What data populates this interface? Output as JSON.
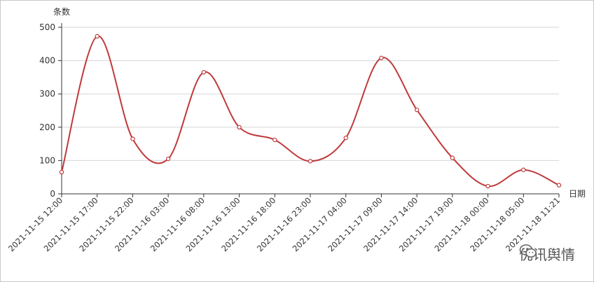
{
  "chart_data": {
    "type": "line",
    "ylabel": "条数",
    "xlabel": "日期",
    "ylim": [
      0,
      500
    ],
    "yticks": [
      0,
      100,
      200,
      300,
      400,
      500
    ],
    "grid": true,
    "smooth": true,
    "series_color": "#c0393b",
    "categories": [
      "2021-11-15 12:00",
      "2021-11-15 17:00",
      "2021-11-15 22:00",
      "2021-11-16 03:00",
      "2021-11-16 08:00",
      "2021-11-16 13:00",
      "2021-11-16 18:00",
      "2021-11-16 23:00",
      "2021-11-17 04:00",
      "2021-11-17 09:00",
      "2021-11-17 14:00",
      "2021-11-17 19:00",
      "2021-11-18 00:00",
      "2021-11-18 05:00",
      "2021-11-18 11:21"
    ],
    "values": [
      65,
      473,
      165,
      105,
      365,
      200,
      162,
      98,
      168,
      408,
      252,
      108,
      23,
      72,
      26
    ]
  },
  "watermark": {
    "text": "优讯舆情",
    "icon": "wechat-icon"
  }
}
